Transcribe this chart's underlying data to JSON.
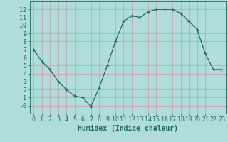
{
  "x": [
    0,
    1,
    2,
    3,
    4,
    5,
    6,
    7,
    8,
    9,
    10,
    11,
    12,
    13,
    14,
    15,
    16,
    17,
    18,
    19,
    20,
    21,
    22,
    23
  ],
  "y": [
    7.0,
    5.5,
    4.5,
    3.0,
    2.0,
    1.2,
    1.0,
    -0.1,
    2.2,
    5.0,
    8.0,
    10.5,
    11.2,
    11.0,
    11.7,
    12.0,
    12.0,
    12.0,
    11.5,
    10.5,
    9.5,
    6.5,
    4.5,
    4.5
  ],
  "xlabel": "Humidex (Indice chaleur)",
  "line_color": "#1a6b5a",
  "marker": "+",
  "bg_color": "#b0dcdc",
  "grid_color_major": "#c8a0a0",
  "grid_color_minor": "#dac8c8",
  "axis_color": "#1a6b5a",
  "text_color": "#1a6b5a",
  "xlim": [
    -0.5,
    23.5
  ],
  "ylim": [
    -1.0,
    13.0
  ],
  "xticks": [
    0,
    1,
    2,
    3,
    4,
    5,
    6,
    7,
    8,
    9,
    10,
    11,
    12,
    13,
    14,
    15,
    16,
    17,
    18,
    19,
    20,
    21,
    22,
    23
  ],
  "yticks": [
    0,
    1,
    2,
    3,
    4,
    5,
    6,
    7,
    8,
    9,
    10,
    11,
    12
  ],
  "ytick_labels": [
    "-0",
    "1",
    "2",
    "3",
    "4",
    "5",
    "6",
    "7",
    "8",
    "9",
    "10",
    "11",
    "12"
  ],
  "xlabel_fontsize": 7,
  "tick_fontsize": 6
}
